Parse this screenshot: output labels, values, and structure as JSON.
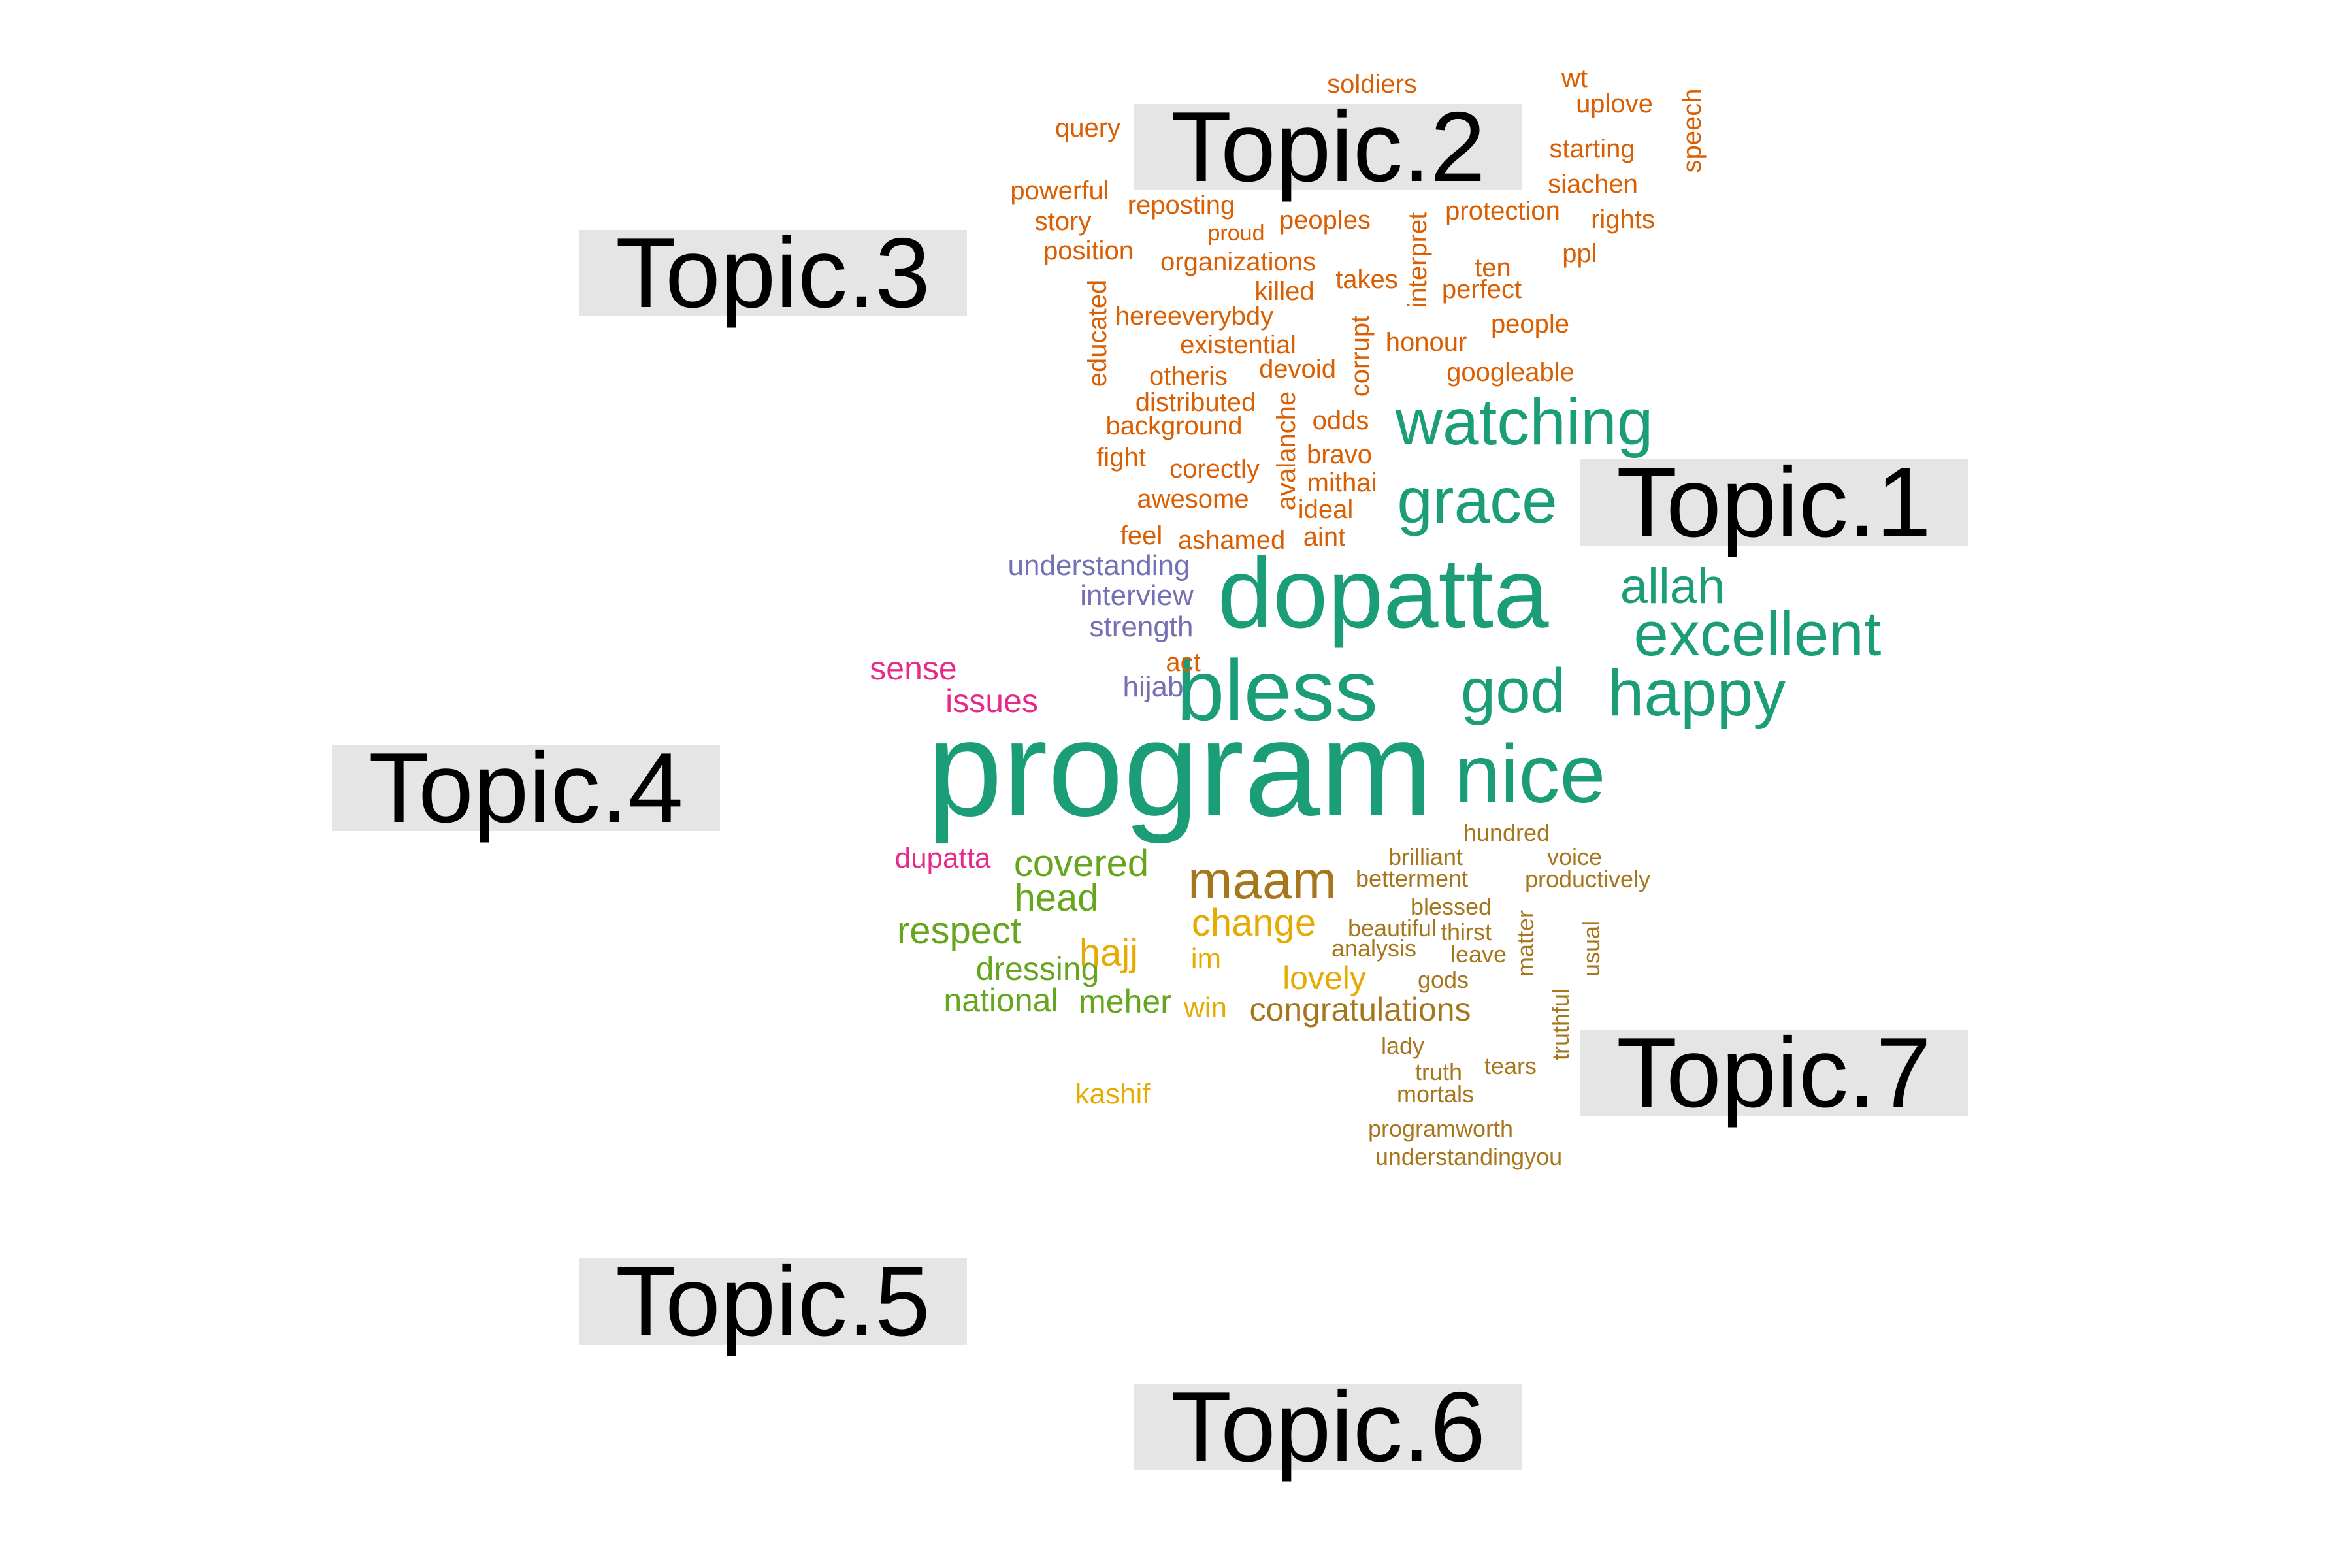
{
  "topics": {
    "t1": "Topic.1",
    "t2": "Topic.2",
    "t3": "Topic.3",
    "t4": "Topic.4",
    "t5": "Topic.5",
    "t6": "Topic.6",
    "t7": "Topic.7"
  },
  "colors": {
    "topic1": "#1b9e77",
    "topic2": "#d95f02",
    "topic3": "#7570b3",
    "topic4": "#e7298a",
    "topic5": "#66a61e",
    "topic6": "#e6ab02",
    "topic7": "#a6761d",
    "label_text": "#000000",
    "label_background": "#e5e5e5"
  },
  "words": {
    "topic1": [
      "program",
      "dopatta",
      "bless",
      "nice",
      "watching",
      "grace",
      "excellent",
      "happy",
      "god",
      "allah"
    ],
    "topic2": [
      "soldiers",
      "wt",
      "uplove",
      "speech",
      "query",
      "starting",
      "siachen",
      "powerful",
      "reposting",
      "protection",
      "story",
      "proud",
      "peoples",
      "interpret",
      "rights",
      "position",
      "organizations",
      "ppl",
      "ten",
      "takes",
      "killed",
      "perfect",
      "educated",
      "hereeverybdy",
      "corrupt",
      "people",
      "existential",
      "honour",
      "otheris",
      "devoid",
      "googleable",
      "avalanche",
      "distributed",
      "odds",
      "background",
      "bravo",
      "fight",
      "corectly",
      "mithai",
      "awesome",
      "ideal",
      "feel",
      "ashamed",
      "aint",
      "act"
    ],
    "topic3": [
      "understanding",
      "interview",
      "strength",
      "hijab"
    ],
    "topic4": [
      "sense",
      "issues",
      "dupatta"
    ],
    "topic5": [
      "covered",
      "head",
      "respect",
      "dressing",
      "national",
      "meher"
    ],
    "topic6": [
      "change",
      "hajj",
      "im",
      "lovely",
      "win",
      "kashif"
    ],
    "topic7": [
      "maam",
      "hundred",
      "brilliant",
      "voice",
      "betterment",
      "productively",
      "blessed",
      "beautiful",
      "thirst",
      "matter",
      "usual",
      "analysis",
      "leave",
      "gods",
      "congratulations",
      "truthful",
      "lady",
      "truth",
      "tears",
      "mortals",
      "programworth",
      "understandingyou"
    ]
  }
}
